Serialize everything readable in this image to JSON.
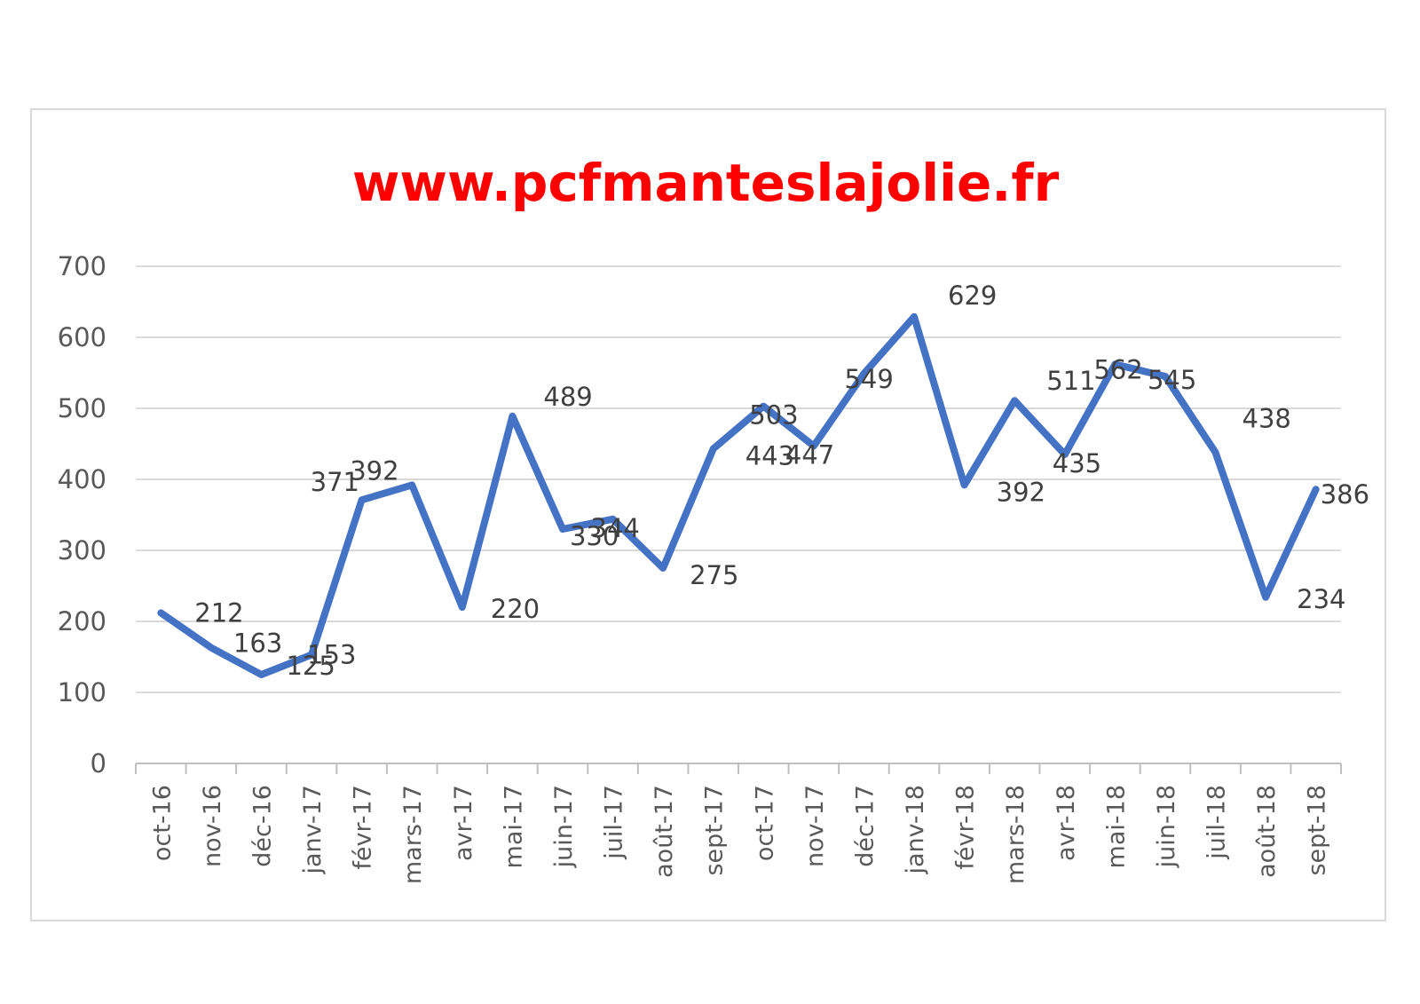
{
  "chart_data": {
    "type": "line",
    "title": "www.pcfmanteslajolie.fr",
    "ylim": [
      0,
      700
    ],
    "yticks": [
      "0",
      "100",
      "200",
      "300",
      "400",
      "500",
      "600",
      "700"
    ],
    "grid": true,
    "categories": [
      "oct-16",
      "nov-16",
      "déc-16",
      "janv-17",
      "févr-17",
      "mars-17",
      "avr-17",
      "mai-17",
      "juin-17",
      "juil-17",
      "août-17",
      "sept-17",
      "oct-17",
      "nov-17",
      "déc-17",
      "janv-18",
      "févr-18",
      "mars-18",
      "avr-18",
      "mai-18",
      "juin-18",
      "juil-18",
      "août-18",
      "sept-18"
    ],
    "series": [
      {
        "color": "#4472c4",
        "values": [
          212,
          163,
          125,
          153,
          371,
          392,
          220,
          489,
          330,
          344,
          275,
          443,
          503,
          447,
          549,
          629,
          392,
          511,
          435,
          562,
          545,
          438,
          234,
          386
        ]
      }
    ]
  }
}
